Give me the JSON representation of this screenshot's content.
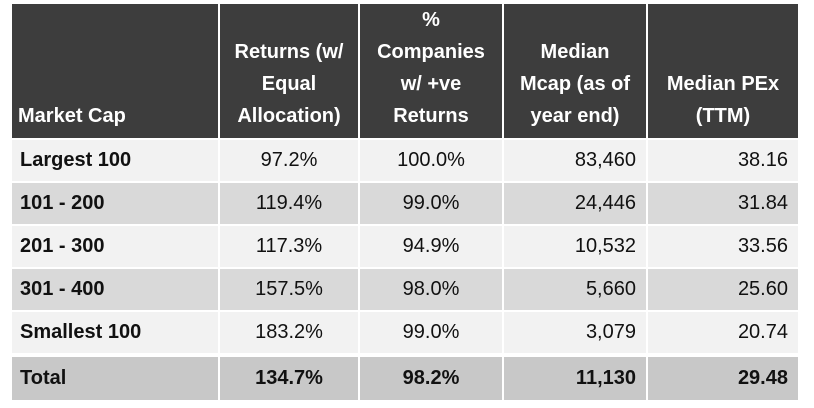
{
  "table": {
    "headers": [
      "Market Cap",
      "Returns (w/\nEqual\nAllocation)",
      "% Companies\nw/ +ve\nReturns",
      "Median\nMcap (as of\nyear end)",
      "Median PEx\n(TTM)"
    ],
    "rows": [
      [
        "Largest 100",
        "97.2%",
        "100.0%",
        "83,460",
        "38.16"
      ],
      [
        "101 - 200",
        "119.4%",
        "99.0%",
        "24,446",
        "31.84"
      ],
      [
        "201 - 300",
        "117.3%",
        "94.9%",
        "10,532",
        "33.56"
      ],
      [
        "301 - 400",
        "157.5%",
        "98.0%",
        "5,660",
        "25.60"
      ],
      [
        "Smallest 100",
        "183.2%",
        "99.0%",
        "3,079",
        "20.74"
      ]
    ],
    "total": [
      "Total",
      "134.7%",
      "98.2%",
      "11,130",
      "29.48"
    ]
  }
}
